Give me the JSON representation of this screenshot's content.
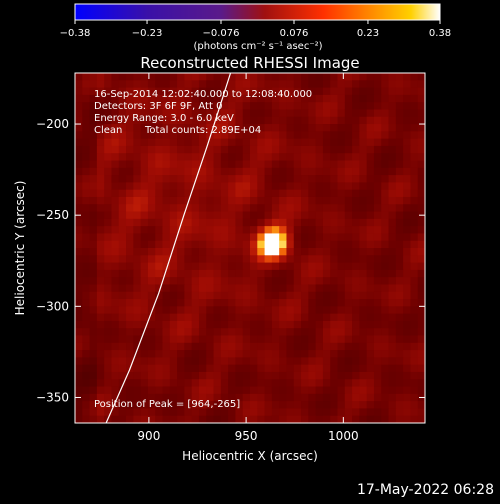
{
  "chart_data": {
    "type": "heatmap",
    "title": "Reconstructed RHESSI Image",
    "xlabel": "Heliocentric X (arcsec)",
    "ylabel": "Heliocentric Y (arcsec)",
    "xlim": [
      862,
      1042
    ],
    "ylim": [
      -364,
      -172
    ],
    "x_ticks": [
      900,
      950,
      1000
    ],
    "y_ticks": [
      -200,
      -250,
      -300,
      -350
    ],
    "colorbar": {
      "range": [
        -0.38,
        0.38
      ],
      "ticks": [
        -0.38,
        -0.23,
        -0.076,
        0.076,
        0.23,
        0.38
      ],
      "tick_labels": [
        "-0.38",
        "-0.23",
        "-0.076",
        "0.076",
        "0.23",
        "0.38"
      ],
      "unit_label": "(photons cm⁻² s⁻¹ asec⁻²)",
      "colors": [
        "#0000ff",
        "#3a10a8",
        "#5a1a8a",
        "#a01010",
        "#ff3000",
        "#ff9000",
        "#ffd000",
        "#ffffff"
      ]
    },
    "peak": {
      "x": 964,
      "y": -265,
      "value": 0.38
    },
    "limb_curve": [
      [
        878,
        -364
      ],
      [
        890,
        -335
      ],
      [
        905,
        -293
      ],
      [
        918,
        -250
      ],
      [
        930,
        -212
      ],
      [
        942,
        -172
      ]
    ],
    "annotations": {
      "time_range": "16-Sep-2014 12:02:40.000 to 12:08:40.000",
      "detectors": "Detectors: 3F 6F 9F, Att 0",
      "energy": "Energy Range: 3.0 - 6.0 keV",
      "algorithm": "Clean",
      "counts": "Total counts: 2.89E+04",
      "peak_text": "Position of Peak = [964,-265]"
    }
  },
  "timestamp": "17-May-2022 06:28"
}
